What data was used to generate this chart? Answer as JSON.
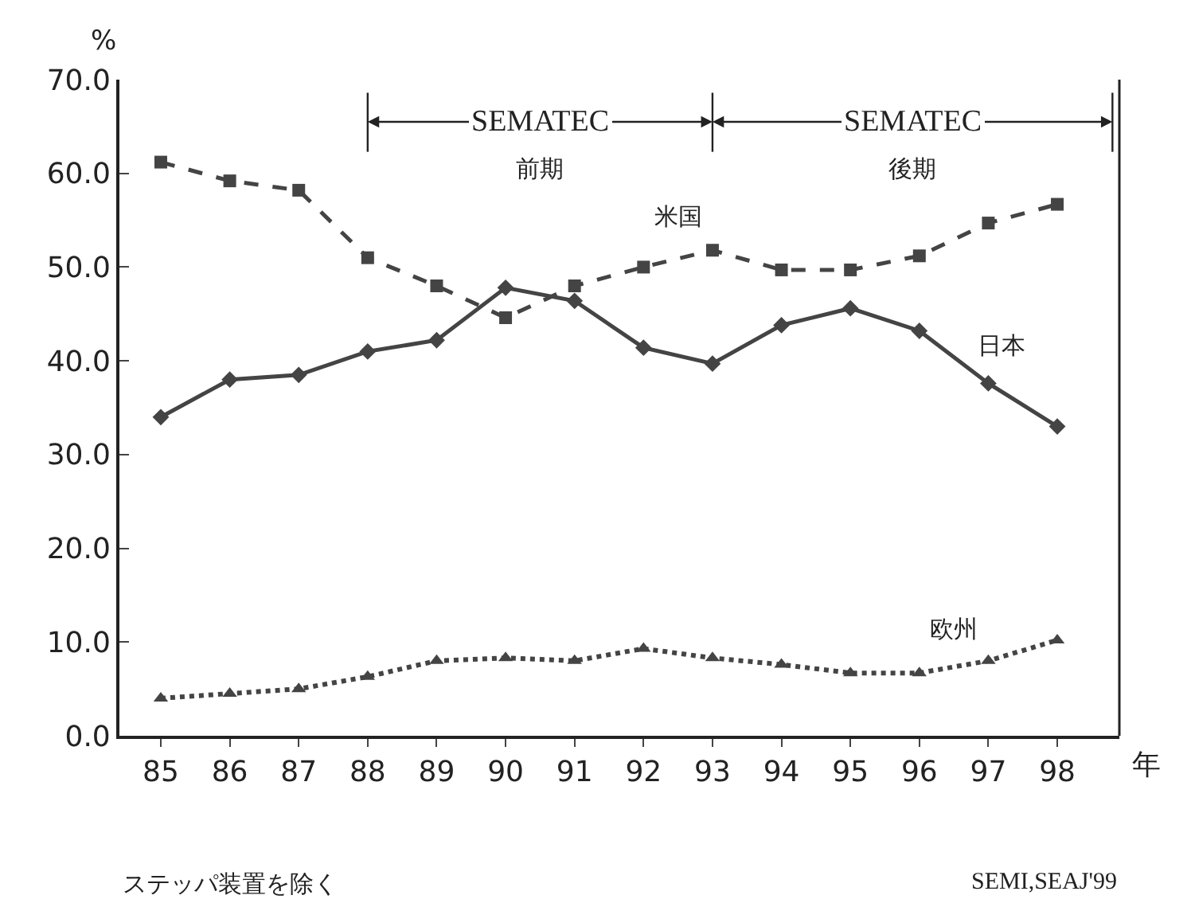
{
  "chart_data": {
    "type": "line",
    "ylabel": "%",
    "xlabel": "年",
    "x": [
      85,
      86,
      87,
      88,
      89,
      90,
      91,
      92,
      93,
      94,
      95,
      96,
      97,
      98
    ],
    "series": [
      {
        "name": "米国",
        "color": "#444444",
        "marker": "square",
        "line_style": "dashed",
        "values": [
          61.2,
          59.2,
          58.2,
          51,
          48,
          44.6,
          48,
          50,
          51.8,
          49.7,
          49.7,
          51.2,
          54.7,
          56.7
        ]
      },
      {
        "name": "日本",
        "color": "#444444",
        "marker": "diamond",
        "line_style": "solid",
        "values": [
          34,
          38,
          38.5,
          41,
          42.2,
          47.8,
          46.4,
          41.4,
          39.7,
          43.8,
          45.6,
          43.2,
          37.6,
          33
        ]
      },
      {
        "name": "欧州",
        "color": "#444444",
        "marker": "triangle",
        "line_style": "dotted",
        "values": [
          4,
          4.5,
          5,
          6.3,
          8,
          8.3,
          8,
          9.3,
          8.3,
          7.6,
          6.7,
          6.7,
          8,
          10.2
        ]
      }
    ],
    "xlim": [
      84.4,
      98.9
    ],
    "xticks": [
      85,
      86,
      87,
      88,
      89,
      90,
      91,
      92,
      93,
      94,
      95,
      96,
      97,
      98
    ],
    "ylim": [
      0,
      70
    ],
    "yticks": [
      {
        "value": 0,
        "label": "0.0"
      },
      {
        "value": 10,
        "label": "10.0"
      },
      {
        "value": 20,
        "label": "20.0"
      },
      {
        "value": 30,
        "label": "30.0"
      },
      {
        "value": 40,
        "label": "40.0"
      },
      {
        "value": 50,
        "label": "50.0"
      },
      {
        "value": 60,
        "label": "60.0"
      },
      {
        "value": 70,
        "label": "70.0"
      }
    ],
    "ref_lines": [
      {
        "axis": "x",
        "value": 88,
        "color": "#222222"
      },
      {
        "axis": "x",
        "value": 93,
        "color": "#222222"
      },
      {
        "axis": "x",
        "value": 98.8,
        "color": "#222222"
      }
    ],
    "annotations": [
      {
        "text": "SEMATEC\n前期",
        "x": 88,
        "y": 65.5
      },
      {
        "text": "SEMATEC\n後期",
        "x": 93,
        "y": 65.5
      },
      "ステッパ装置を除く",
      "SEMI,SEAJ'99"
    ],
    "legend": false
  }
}
